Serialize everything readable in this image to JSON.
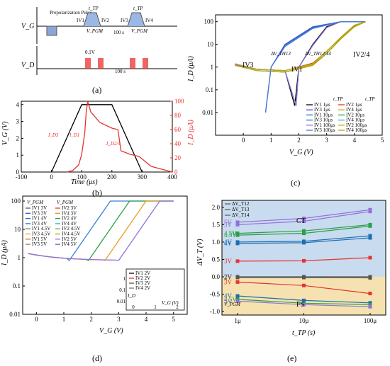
{
  "panel_labels": [
    "(a)",
    "(b)",
    "(c)",
    "(d)",
    "(e)"
  ],
  "panel_a": {
    "y_labels": [
      "V_G",
      "V_D"
    ],
    "pulse_label": "Prepolarization\nPulse",
    "labels": [
      "IV1",
      "IV2",
      "IV3",
      "IV4",
      "t_TP",
      "t_TP",
      "V_PGM",
      "V_PGM",
      "100 s",
      "100 s",
      "0.1V"
    ]
  },
  "chart_data": [
    {
      "id": "b",
      "type": "line",
      "xlabel": "Time (μs)",
      "ylabel": "V_G (V)",
      "y2label": "I_D (μA)",
      "xlim": [
        -100,
        400
      ],
      "ylim": [
        0,
        4.2
      ],
      "y2lim": [
        0,
        100
      ],
      "xticks": [
        -100,
        0,
        100,
        200,
        300,
        400
      ],
      "yticks": [
        0,
        1,
        2,
        3,
        4
      ],
      "y2ticks": [
        0,
        20,
        40,
        60,
        80,
        100
      ],
      "annotations": [
        "I_D3",
        "I_D1",
        "I_D2/4"
      ],
      "series": [
        {
          "axis": "left",
          "color": "#000000",
          "x": [
            0,
            100,
            200,
            300
          ],
          "y": [
            0,
            4,
            4,
            0
          ]
        },
        {
          "axis": "right",
          "color": "#e8322e",
          "x": [
            50,
            70,
            90,
            100,
            110,
            115,
            120,
            130,
            160,
            200,
            220,
            230,
            260,
            290,
            330,
            400
          ],
          "y": [
            0,
            2,
            10,
            25,
            55,
            85,
            100,
            85,
            70,
            62,
            60,
            30,
            25,
            22,
            8,
            0
          ]
        }
      ]
    },
    {
      "id": "c",
      "type": "line",
      "xlabel": "V_G (V)",
      "ylabel": "I_D (μA)",
      "yscale": "log",
      "xlim": [
        -1,
        5
      ],
      "ylim": [
        0.001,
        200
      ],
      "xticks": [
        0,
        1,
        2,
        3,
        4,
        5
      ],
      "yticks": [
        "0.01",
        "0.1",
        "1",
        "10",
        "100"
      ],
      "annotations": [
        "IV3",
        "IV1",
        "IV2/4",
        "ΔV_TH13",
        "ΔV_TH12/14"
      ],
      "legend_headers": [
        "t_TP",
        "t_TP"
      ],
      "series": [
        {
          "name": "IV1 1μs",
          "color": "#000000",
          "x": [
            -0.3,
            0.5,
            1.5,
            1.85,
            2.0,
            2.5,
            3.0,
            3.5
          ],
          "y": [
            1.3,
            0.8,
            0.7,
            0.02,
            1.0,
            10,
            60,
            100
          ]
        },
        {
          "name": "IV2 1μs",
          "color": "#e8322e",
          "x": [
            -0.3,
            0.5,
            1.5,
            2.5,
            3.0,
            3.5,
            4.0,
            4.4
          ],
          "y": [
            1.4,
            0.8,
            0.7,
            1.5,
            5,
            20,
            70,
            100
          ]
        },
        {
          "name": "IV3 1μs",
          "color": "#4a4ad0",
          "x": [
            4.4,
            3.5,
            2.5,
            1.5,
            1.0,
            0.8
          ],
          "y": [
            100,
            100,
            60,
            10,
            1,
            0.01
          ]
        },
        {
          "name": "IV4 1μs",
          "color": "#c8a800",
          "x": [
            -0.3,
            0.5,
            1.5,
            2.5,
            3.0,
            3.5,
            4.0,
            4.4
          ],
          "y": [
            1.2,
            0.7,
            0.6,
            1.3,
            4,
            18,
            65,
            100
          ]
        },
        {
          "name": "IV1 10μs",
          "color": "#1b6fb5",
          "x": [
            -0.3,
            0.5,
            1.5,
            1.9,
            2.0,
            2.5,
            3.0,
            3.5
          ],
          "y": [
            1.3,
            0.8,
            0.7,
            0.02,
            1.0,
            9,
            55,
            100
          ]
        },
        {
          "name": "IV2 10μs",
          "color": "#2aa046",
          "x": [
            -0.3,
            0.5,
            1.5,
            2.5,
            3.0,
            3.5,
            4.0,
            4.4
          ],
          "y": [
            1.4,
            0.8,
            0.7,
            1.4,
            5,
            20,
            70,
            100
          ]
        },
        {
          "name": "IV3 10μs",
          "color": "#1f6fd0",
          "x": [
            4.4,
            3.5,
            2.5,
            1.5,
            1.0,
            0.8
          ],
          "y": [
            100,
            100,
            55,
            9,
            1,
            0.01
          ]
        },
        {
          "name": "IV4 10μs",
          "color": "#38a8c8",
          "x": [
            -0.3,
            0.5,
            1.5,
            2.5,
            3.0,
            3.5,
            4.0,
            4.4
          ],
          "y": [
            1.2,
            0.7,
            0.6,
            1.2,
            4,
            17,
            60,
            100
          ]
        },
        {
          "name": "IV1 100μs",
          "color": "#9370db",
          "x": [
            -0.3,
            0.5,
            1.5,
            1.9,
            2.0,
            2.5,
            3.0,
            3.5
          ],
          "y": [
            1.3,
            0.8,
            0.7,
            0.02,
            1.0,
            9,
            55,
            100
          ]
        },
        {
          "name": "IV2 100μs",
          "color": "#c8a800",
          "x": [
            -0.3,
            0.5,
            1.5,
            2.5,
            3.0,
            3.5,
            4.0,
            4.4
          ],
          "y": [
            1.4,
            0.8,
            0.7,
            1.4,
            5,
            20,
            70,
            100
          ]
        },
        {
          "name": "IV3 100μs",
          "color": "#4a7ad0",
          "x": [
            4.4,
            3.5,
            2.5,
            1.5,
            1.0,
            0.8
          ],
          "y": [
            100,
            100,
            50,
            8,
            1,
            0.01
          ]
        },
        {
          "name": "IV4 100μs",
          "color": "#b8a000",
          "x": [
            -0.3,
            0.5,
            1.5,
            2.5,
            3.0,
            3.5,
            4.0,
            4.4
          ],
          "y": [
            1.2,
            0.7,
            0.6,
            1.2,
            4,
            17,
            60,
            100
          ]
        }
      ]
    },
    {
      "id": "d",
      "type": "line",
      "xlabel": "V_G (V)",
      "ylabel": "I_D (μA)",
      "yscale": "log",
      "xlim": [
        -0.5,
        5.5
      ],
      "ylim": [
        0.01,
        150
      ],
      "xticks": [
        0,
        1,
        2,
        3,
        4,
        5
      ],
      "yticks": [
        "0.01",
        "0.1",
        "1",
        "10",
        "100"
      ],
      "legend_headers": [
        "V_PGM",
        "V_PGM"
      ],
      "legend": [
        "IV1 3V",
        "IV2 3V",
        "IV3 3V",
        "IV4 3V",
        "IV1 4V",
        "IV2 4V",
        "IV3 4V",
        "IV4 4V",
        "IV1 4.5V",
        "IV2 4.5V",
        "IV3 4.5V",
        "IV4 4.5V",
        "IV1 5V",
        "IV2 5V",
        "IV3 5V",
        "IV4 5V"
      ],
      "inset": {
        "xlabel": "V_G (V)",
        "ylabel": "I_D",
        "xticks": [
          0,
          1,
          2
        ],
        "yticks": [
          "0.01",
          "0.1",
          "1"
        ],
        "legend": [
          "IV1 2V",
          "IV2 2V",
          "IV3 2V",
          "IV4 2V"
        ]
      }
    },
    {
      "id": "e",
      "type": "line",
      "xlabel": "t_TP (s)",
      "ylabel": "ΔV_T (V)",
      "xscale": "log",
      "categories": [
        "1μ",
        "10μ",
        "100μ"
      ],
      "ylim": [
        -1.1,
        2.2
      ],
      "yticks": [
        -1.0,
        -0.5,
        0.0,
        0.5,
        1.0,
        1.5,
        2.0
      ],
      "regions": [
        {
          "label": "CT",
          "from": 0,
          "to": 2.2,
          "color": "#c9dbee"
        },
        {
          "label": "FS",
          "from": -1.1,
          "to": 0,
          "color": "#f5e2b0"
        }
      ],
      "legend": [
        "ΔV_T12",
        "ΔV_T13",
        "ΔV_T14"
      ],
      "vpgm_label": "V_PGM",
      "series": [
        {
          "name": "5V",
          "color": "#9370db",
          "values": [
            1.57,
            1.68,
            1.93
          ]
        },
        {
          "name": "5V",
          "color": "#9370db",
          "values": [
            1.5,
            1.6,
            1.88
          ]
        },
        {
          "name": "4.5V",
          "color": "#2aa046",
          "values": [
            1.25,
            1.32,
            1.5
          ]
        },
        {
          "name": "4.5V",
          "color": "#2aa046",
          "values": [
            1.2,
            1.25,
            1.46
          ]
        },
        {
          "name": "4V",
          "color": "#1b6fb5",
          "values": [
            1.0,
            1.02,
            1.18
          ]
        },
        {
          "name": "4V",
          "color": "#1b6fb5",
          "values": [
            0.96,
            0.98,
            1.12
          ]
        },
        {
          "name": "3V",
          "color": "#e8322e",
          "values": [
            0.45,
            0.46,
            0.55
          ]
        },
        {
          "name": "2V",
          "color": "#555555",
          "values": [
            0.0,
            0.0,
            0.0
          ]
        },
        {
          "name": "2V",
          "color": "#555555",
          "values": [
            -0.02,
            -0.02,
            -0.03
          ]
        },
        {
          "name": "3V",
          "color": "#e8322e",
          "values": [
            -0.15,
            -0.25,
            -0.48
          ]
        },
        {
          "name": "4V",
          "color": "#1b6fb5",
          "values": [
            -0.55,
            -0.68,
            -0.75
          ]
        },
        {
          "name": "4.5V",
          "color": "#2aa046",
          "values": [
            -0.65,
            -0.76,
            -0.8
          ]
        },
        {
          "name": "5V",
          "color": "#9370db",
          "values": [
            -0.7,
            -0.8,
            -0.86
          ]
        }
      ]
    }
  ]
}
